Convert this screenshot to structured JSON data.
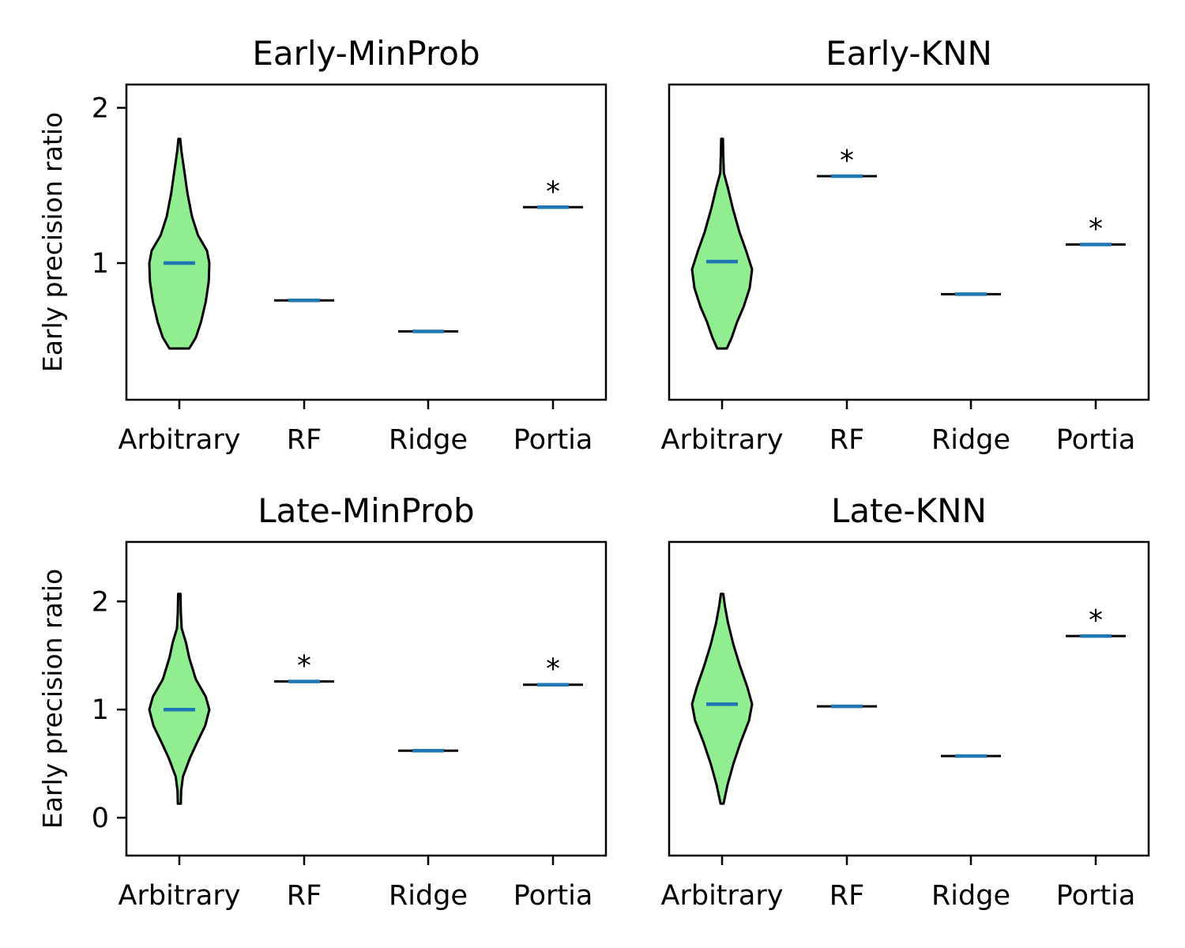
{
  "chart_data": [
    {
      "type": "violin",
      "title": "Early-MinProb",
      "ylabel": "Early precision ratio",
      "categories": [
        "Arbitrary",
        "RF",
        "Ridge",
        "Portia"
      ],
      "ylim": [
        0.12,
        2.15
      ],
      "yticks": [
        1,
        2
      ],
      "yticklabels": [
        "1",
        "2"
      ],
      "violin": {
        "min": 0.45,
        "max": 1.8,
        "mean": 1.0,
        "profile": [
          [
            0.45,
            0.33
          ],
          [
            0.52,
            0.55
          ],
          [
            0.62,
            0.72
          ],
          [
            0.75,
            0.88
          ],
          [
            0.88,
            0.98
          ],
          [
            1.0,
            1.0
          ],
          [
            1.08,
            0.92
          ],
          [
            1.18,
            0.62
          ],
          [
            1.3,
            0.42
          ],
          [
            1.45,
            0.27
          ],
          [
            1.6,
            0.16
          ],
          [
            1.72,
            0.07
          ],
          [
            1.8,
            0.03
          ]
        ]
      },
      "values": {
        "RF": 0.76,
        "Ridge": 0.56,
        "Portia": 1.36
      },
      "significant": [
        "Portia"
      ]
    },
    {
      "type": "violin",
      "title": "Early-KNN",
      "ylabel": "",
      "categories": [
        "Arbitrary",
        "RF",
        "Ridge",
        "Portia"
      ],
      "ylim": [
        0.12,
        2.15
      ],
      "yticks": [],
      "yticklabels": [],
      "violin": {
        "min": 0.45,
        "max": 1.8,
        "mean": 1.01,
        "profile": [
          [
            0.45,
            0.16
          ],
          [
            0.52,
            0.32
          ],
          [
            0.62,
            0.5
          ],
          [
            0.72,
            0.72
          ],
          [
            0.84,
            0.92
          ],
          [
            0.96,
            1.0
          ],
          [
            1.08,
            0.8
          ],
          [
            1.2,
            0.58
          ],
          [
            1.35,
            0.36
          ],
          [
            1.48,
            0.2
          ],
          [
            1.58,
            0.06
          ],
          [
            1.7,
            0.04
          ],
          [
            1.8,
            0.03
          ]
        ]
      },
      "values": {
        "RF": 1.56,
        "Ridge": 0.8,
        "Portia": 1.12
      },
      "significant": [
        "RF",
        "Portia"
      ]
    },
    {
      "type": "violin",
      "title": "Late-MinProb",
      "ylabel": "Early precision ratio",
      "categories": [
        "Arbitrary",
        "RF",
        "Ridge",
        "Portia"
      ],
      "ylim": [
        -0.35,
        2.55
      ],
      "yticks": [
        0,
        1,
        2
      ],
      "yticklabels": [
        "0",
        "1",
        "2"
      ],
      "violin": {
        "min": 0.13,
        "max": 2.07,
        "mean": 1.0,
        "profile": [
          [
            0.13,
            0.05
          ],
          [
            0.25,
            0.06
          ],
          [
            0.38,
            0.12
          ],
          [
            0.55,
            0.35
          ],
          [
            0.7,
            0.6
          ],
          [
            0.85,
            0.86
          ],
          [
            1.0,
            1.0
          ],
          [
            1.12,
            0.88
          ],
          [
            1.28,
            0.55
          ],
          [
            1.48,
            0.33
          ],
          [
            1.62,
            0.22
          ],
          [
            1.75,
            0.08
          ],
          [
            1.9,
            0.05
          ],
          [
            2.07,
            0.04
          ]
        ]
      },
      "values": {
        "RF": 1.26,
        "Ridge": 0.62,
        "Portia": 1.23
      },
      "significant": [
        "RF",
        "Portia"
      ]
    },
    {
      "type": "violin",
      "title": "Late-KNN",
      "ylabel": "",
      "categories": [
        "Arbitrary",
        "RF",
        "Ridge",
        "Portia"
      ],
      "ylim": [
        -0.35,
        2.55
      ],
      "yticks": [],
      "yticklabels": [],
      "violin": {
        "min": 0.13,
        "max": 2.07,
        "mean": 1.05,
        "profile": [
          [
            0.13,
            0.05
          ],
          [
            0.3,
            0.18
          ],
          [
            0.5,
            0.38
          ],
          [
            0.7,
            0.62
          ],
          [
            0.9,
            0.9
          ],
          [
            1.05,
            1.0
          ],
          [
            1.2,
            0.85
          ],
          [
            1.4,
            0.6
          ],
          [
            1.6,
            0.38
          ],
          [
            1.8,
            0.2
          ],
          [
            1.95,
            0.1
          ],
          [
            2.07,
            0.04
          ]
        ]
      },
      "values": {
        "RF": 1.03,
        "Ridge": 0.57,
        "Portia": 1.68
      },
      "significant": [
        "Portia"
      ]
    }
  ],
  "colors": {
    "violin_fill": "#90ee90",
    "marker": "#1f77b4",
    "edge": "#000000"
  },
  "significance_marker": "*"
}
